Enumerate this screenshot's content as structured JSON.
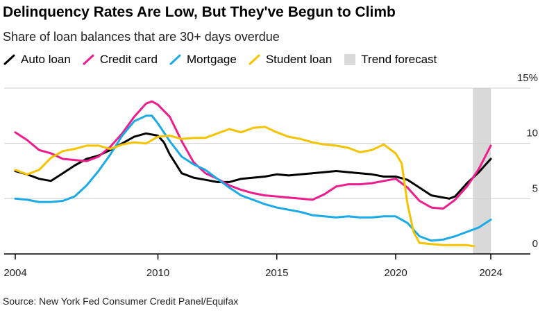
{
  "header": {
    "title": "Delinquency Rates Are Low, But They've Begun to Climb",
    "subtitle": "Share of loan balances that are 30+ days overdue"
  },
  "footer": {
    "source": "Source: New York Fed Consumer Credit Panel/Equifax"
  },
  "colors": {
    "auto": "#000000",
    "credit": "#ee1c8c",
    "mortgage": "#1aaae6",
    "student": "#f5c300",
    "forecast": "#d9d9d9",
    "grid": "#cfcfcf",
    "axis": "#000000"
  },
  "chart_data": {
    "type": "line",
    "title": "Delinquency Rates Are Low, But They've Begun to Climb",
    "subtitle": "Share of loan balances that are 30+ days overdue",
    "xlabel": "",
    "ylabel": "",
    "xlim": [
      2003.8,
      2025.8
    ],
    "ylim": [
      0,
      15
    ],
    "x_ticks": [
      2004,
      2010,
      2015,
      2020,
      2024
    ],
    "y_ticks": [
      0,
      5,
      10,
      15
    ],
    "y_tick_labels": [
      "0",
      "5",
      "10",
      "15%"
    ],
    "grid": true,
    "legend_position": "top-left",
    "forecast_band": {
      "label": "Trend forecast",
      "x_start": 2023.25,
      "x_end": 2024.0
    },
    "series": [
      {
        "key": "auto",
        "name": "Auto loan",
        "color": "#000000",
        "x": [
          2004.0,
          2004.5,
          2005.0,
          2005.5,
          2006.0,
          2006.5,
          2007.0,
          2007.5,
          2008.0,
          2008.5,
          2009.0,
          2009.5,
          2010.0,
          2010.25,
          2010.5,
          2011.0,
          2011.5,
          2012.0,
          2012.5,
          2013.0,
          2013.5,
          2014.0,
          2014.5,
          2015.0,
          2015.5,
          2016.0,
          2016.5,
          2017.0,
          2017.5,
          2018.0,
          2018.5,
          2019.0,
          2019.5,
          2020.0,
          2020.5,
          2021.0,
          2021.5,
          2022.0,
          2022.25,
          2022.5,
          2023.0,
          2023.5,
          2024.0
        ],
        "values": [
          7.5,
          7.2,
          6.8,
          6.6,
          7.3,
          8.0,
          8.6,
          8.9,
          9.4,
          10.0,
          10.6,
          10.9,
          10.7,
          10.1,
          9.0,
          7.3,
          6.9,
          6.7,
          6.5,
          6.5,
          6.8,
          6.9,
          7.0,
          7.2,
          7.1,
          7.2,
          7.3,
          7.4,
          7.5,
          7.4,
          7.3,
          7.2,
          7.0,
          7.0,
          6.7,
          6.0,
          5.3,
          5.1,
          5.0,
          5.2,
          6.4,
          7.4,
          8.6
        ]
      },
      {
        "key": "credit",
        "name": "Credit card",
        "color": "#ee1c8c",
        "x": [
          2004.0,
          2004.5,
          2005.0,
          2005.5,
          2006.0,
          2006.5,
          2007.0,
          2007.5,
          2008.0,
          2008.5,
          2009.0,
          2009.5,
          2009.75,
          2010.0,
          2010.5,
          2011.0,
          2011.5,
          2012.0,
          2012.5,
          2013.0,
          2013.5,
          2014.0,
          2014.5,
          2015.0,
          2015.5,
          2016.0,
          2016.5,
          2017.0,
          2017.5,
          2018.0,
          2018.5,
          2019.0,
          2019.5,
          2020.0,
          2020.5,
          2021.0,
          2021.5,
          2022.0,
          2022.5,
          2023.0,
          2023.5,
          2024.0
        ],
        "values": [
          11.0,
          10.3,
          9.4,
          9.1,
          8.6,
          8.5,
          8.4,
          8.8,
          9.7,
          10.9,
          12.4,
          13.6,
          13.8,
          13.5,
          12.4,
          10.2,
          8.3,
          7.3,
          6.8,
          6.2,
          5.8,
          5.5,
          5.3,
          5.2,
          5.1,
          5.0,
          4.9,
          5.4,
          6.1,
          6.3,
          6.3,
          6.4,
          6.6,
          6.8,
          6.0,
          4.8,
          4.2,
          4.1,
          4.9,
          6.1,
          7.7,
          9.8
        ]
      },
      {
        "key": "mortgage",
        "name": "Mortgage",
        "color": "#1aaae6",
        "x": [
          2004.0,
          2004.5,
          2005.0,
          2005.5,
          2006.0,
          2006.5,
          2007.0,
          2007.5,
          2008.0,
          2008.5,
          2009.0,
          2009.5,
          2009.75,
          2010.0,
          2010.5,
          2011.0,
          2011.5,
          2012.0,
          2012.5,
          2013.0,
          2013.5,
          2014.0,
          2014.5,
          2015.0,
          2015.5,
          2016.0,
          2016.5,
          2017.0,
          2017.5,
          2018.0,
          2018.5,
          2019.0,
          2019.5,
          2020.0,
          2020.5,
          2021.0,
          2021.5,
          2022.0,
          2022.5,
          2023.0,
          2023.5,
          2024.0
        ],
        "values": [
          5.0,
          4.9,
          4.7,
          4.7,
          4.8,
          5.2,
          6.2,
          7.5,
          9.0,
          10.7,
          12.0,
          12.5,
          12.5,
          11.8,
          10.2,
          8.8,
          8.1,
          7.6,
          6.8,
          6.0,
          5.3,
          4.9,
          4.5,
          4.2,
          4.0,
          3.8,
          3.5,
          3.4,
          3.3,
          3.4,
          3.3,
          3.3,
          3.4,
          3.4,
          2.8,
          1.6,
          1.2,
          1.3,
          1.6,
          2.0,
          2.4,
          3.1
        ]
      },
      {
        "key": "student",
        "name": "Student loan",
        "color": "#f5c300",
        "x": [
          2004.0,
          2004.5,
          2005.0,
          2005.5,
          2006.0,
          2006.5,
          2007.0,
          2007.5,
          2008.0,
          2008.5,
          2009.0,
          2009.5,
          2010.0,
          2010.5,
          2011.0,
          2011.5,
          2012.0,
          2012.5,
          2013.0,
          2013.5,
          2014.0,
          2014.5,
          2015.0,
          2015.5,
          2016.0,
          2016.5,
          2017.0,
          2017.5,
          2018.0,
          2018.5,
          2019.0,
          2019.5,
          2020.0,
          2020.25,
          2020.5,
          2020.75,
          2021.0,
          2021.5,
          2022.0,
          2022.5,
          2023.0,
          2023.3
        ],
        "values": [
          7.6,
          7.2,
          7.6,
          8.7,
          9.3,
          9.5,
          9.8,
          9.8,
          9.5,
          9.9,
          10.1,
          10.0,
          10.6,
          10.7,
          10.4,
          10.5,
          10.5,
          10.9,
          11.3,
          11.0,
          11.4,
          11.5,
          11.0,
          10.6,
          10.4,
          10.1,
          9.9,
          9.8,
          9.6,
          9.2,
          9.4,
          9.9,
          9.1,
          8.2,
          4.5,
          2.0,
          1.0,
          0.9,
          0.8,
          0.8,
          0.8,
          0.7
        ]
      }
    ]
  }
}
